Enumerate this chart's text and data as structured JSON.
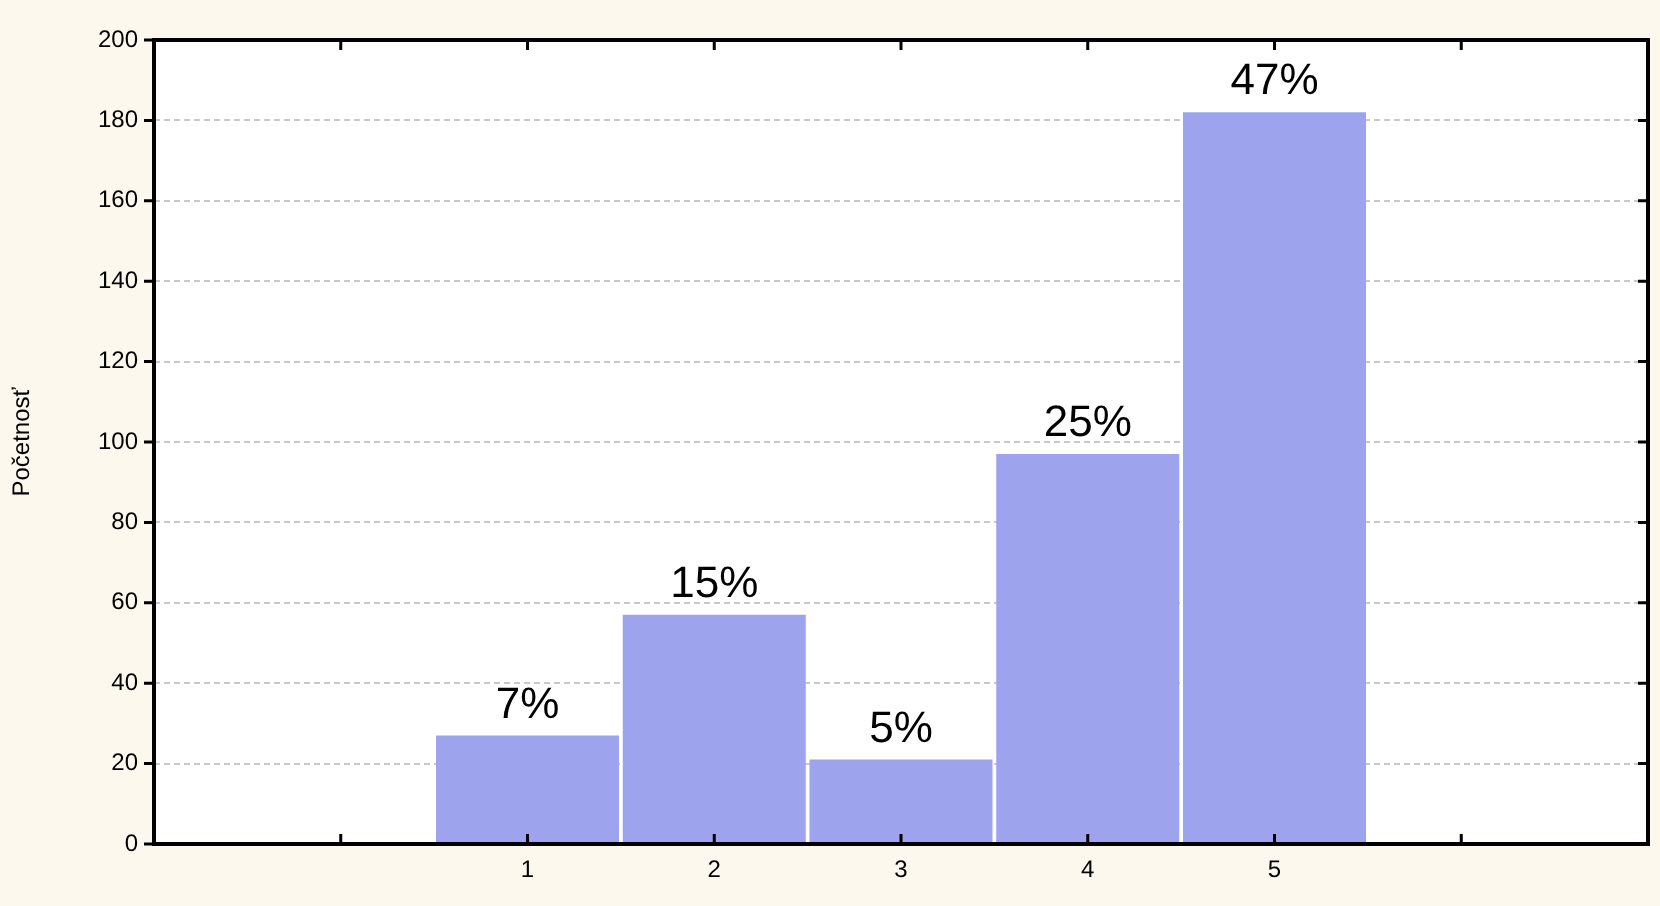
{
  "chart_data": {
    "type": "bar",
    "ylabel": "Početnosť",
    "categories": [
      null,
      null,
      "1",
      "2",
      "3",
      "4",
      "5",
      null,
      null
    ],
    "values": [
      null,
      null,
      27,
      57,
      21,
      97,
      182,
      null,
      null
    ],
    "annotations": [
      {
        "text": "7%",
        "x": "1",
        "y": 27
      },
      {
        "text": "15%",
        "x": "2",
        "y": 57
      },
      {
        "text": "5%",
        "x": "3",
        "y": 21
      },
      {
        "text": "25%",
        "x": "4",
        "y": 97
      },
      {
        "text": "47%",
        "x": "5",
        "y": 182
      }
    ],
    "color": "#9ea3ee",
    "ylim": [
      0,
      200
    ],
    "yticks": [
      0,
      20,
      40,
      60,
      80,
      100,
      120,
      140,
      160,
      180,
      200
    ],
    "grid": "y"
  }
}
